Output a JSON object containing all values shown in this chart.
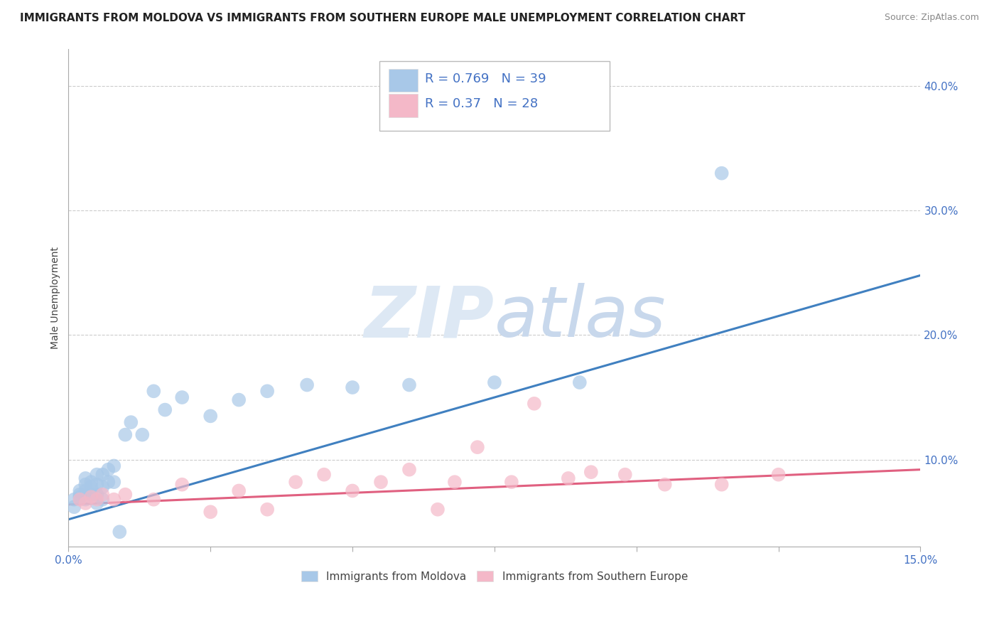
{
  "title": "IMMIGRANTS FROM MOLDOVA VS IMMIGRANTS FROM SOUTHERN EUROPE MALE UNEMPLOYMENT CORRELATION CHART",
  "source": "Source: ZipAtlas.com",
  "ylabel": "Male Unemployment",
  "xlim": [
    0,
    0.15
  ],
  "ylim": [
    0.03,
    0.43
  ],
  "xticks": [
    0.0,
    0.025,
    0.05,
    0.075,
    0.1,
    0.125,
    0.15
  ],
  "xticklabels": [
    "0.0%",
    "",
    "",
    "",
    "",
    "",
    "15.0%"
  ],
  "yticks": [
    0.1,
    0.2,
    0.3,
    0.4
  ],
  "yticklabels": [
    "10.0%",
    "20.0%",
    "30.0%",
    "40.0%"
  ],
  "blue_color": "#a8c8e8",
  "pink_color": "#f4b8c8",
  "blue_line_color": "#4080c0",
  "pink_line_color": "#e06080",
  "blue_R": 0.769,
  "blue_N": 39,
  "pink_R": 0.37,
  "pink_N": 28,
  "watermark_zip": "ZIP",
  "watermark_atlas": "atlas",
  "legend_label_blue": "Immigrants from Moldova",
  "legend_label_pink": "Immigrants from Southern Europe",
  "blue_scatter_x": [
    0.001,
    0.001,
    0.002,
    0.002,
    0.002,
    0.003,
    0.003,
    0.003,
    0.003,
    0.004,
    0.004,
    0.004,
    0.005,
    0.005,
    0.005,
    0.005,
    0.006,
    0.006,
    0.006,
    0.007,
    0.007,
    0.008,
    0.008,
    0.009,
    0.01,
    0.011,
    0.013,
    0.015,
    0.017,
    0.02,
    0.025,
    0.03,
    0.035,
    0.042,
    0.05,
    0.06,
    0.075,
    0.09,
    0.115
  ],
  "blue_scatter_y": [
    0.068,
    0.062,
    0.07,
    0.072,
    0.075,
    0.068,
    0.075,
    0.08,
    0.085,
    0.072,
    0.078,
    0.082,
    0.065,
    0.072,
    0.08,
    0.088,
    0.068,
    0.078,
    0.088,
    0.082,
    0.092,
    0.082,
    0.095,
    0.042,
    0.12,
    0.13,
    0.12,
    0.155,
    0.14,
    0.15,
    0.135,
    0.148,
    0.155,
    0.16,
    0.158,
    0.16,
    0.162,
    0.162,
    0.33
  ],
  "pink_scatter_x": [
    0.002,
    0.003,
    0.004,
    0.005,
    0.006,
    0.008,
    0.01,
    0.015,
    0.02,
    0.025,
    0.03,
    0.035,
    0.04,
    0.045,
    0.05,
    0.055,
    0.06,
    0.065,
    0.068,
    0.072,
    0.078,
    0.082,
    0.088,
    0.092,
    0.098,
    0.105,
    0.115,
    0.125
  ],
  "pink_scatter_y": [
    0.068,
    0.065,
    0.07,
    0.068,
    0.072,
    0.068,
    0.072,
    0.068,
    0.08,
    0.058,
    0.075,
    0.06,
    0.082,
    0.088,
    0.075,
    0.082,
    0.092,
    0.06,
    0.082,
    0.11,
    0.082,
    0.145,
    0.085,
    0.09,
    0.088,
    0.08,
    0.08,
    0.088
  ],
  "blue_trend_x": [
    0.0,
    0.15
  ],
  "blue_trend_y": [
    0.052,
    0.248
  ],
  "pink_trend_x": [
    0.0,
    0.15
  ],
  "pink_trend_y": [
    0.064,
    0.092
  ],
  "title_fontsize": 11,
  "source_fontsize": 9,
  "axis_label_fontsize": 10,
  "tick_fontsize": 11,
  "legend_fontsize": 12,
  "background_color": "#ffffff",
  "grid_color": "#cccccc",
  "axis_color": "#aaaaaa",
  "tick_label_color": "#4472c4",
  "watermark_color": "#dde8f4"
}
